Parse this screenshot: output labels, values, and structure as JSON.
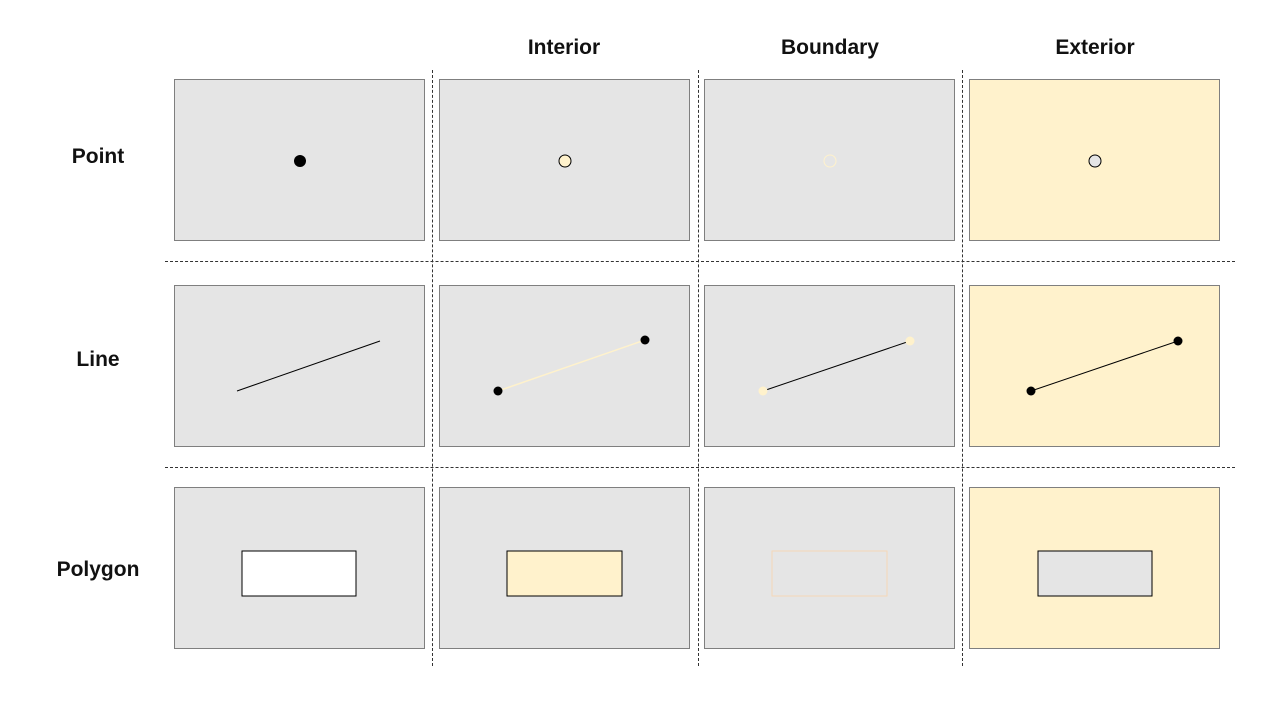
{
  "columns": {
    "interior": "Interior",
    "boundary": "Boundary",
    "exterior": "Exterior"
  },
  "rows": {
    "point": "Point",
    "line": "Line",
    "polygon": "Polygon"
  },
  "colors": {
    "panel_gray": "#e5e5e5",
    "highlight": "#fff2cc",
    "shape_fill": "#ffffff",
    "stroke": "#000000",
    "divider": "#333333"
  }
}
